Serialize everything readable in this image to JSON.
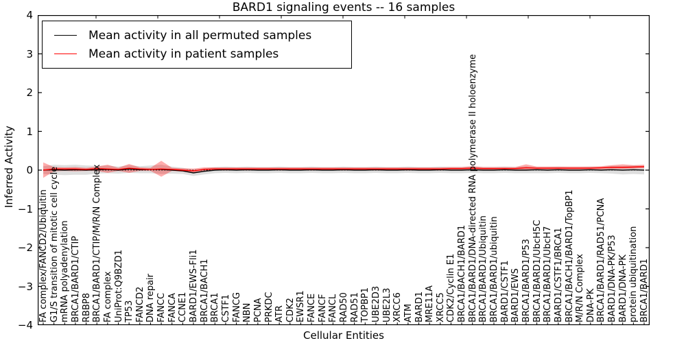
{
  "chart_data": {
    "type": "line",
    "title": "BARD1 signaling events -- 16 samples",
    "xlabel": "Cellular Entities",
    "ylabel": "Inferred Activity",
    "ylim": [
      -4,
      4
    ],
    "yticks": [
      "4",
      "3",
      "2",
      "1",
      "0",
      "−1",
      "−2",
      "−3",
      "−4"
    ],
    "legend_position": "upper left",
    "grid": false,
    "zero_line": {
      "style": "dotted",
      "color": "#000000"
    },
    "categories": [
      "FA complex/FANCD2/Ubiquitin",
      "G1/S transition of mitotic cell cycle",
      "mRNA polyadenylation",
      "BRCA1/BARD1/CTIP",
      "RBBP8",
      "BRCA1/BARD1/CTIP/M/R/N Complex",
      "FA complex",
      "UniProt:Q9BZD1",
      "TP53",
      "FANCD2",
      "DNA repair",
      "FANCC",
      "FANCA",
      "CCNE1",
      "BARD1/EWS-Fli1",
      "BRCA1/BACH1",
      "BRCA1",
      "CSTF1",
      "FANCG",
      "NBN",
      "PCNA",
      "PRKDC",
      "ATR",
      "CDK2",
      "EWSR1",
      "FANCE",
      "FANCF",
      "FANCL",
      "RAD50",
      "RAD51",
      "TOPBP1",
      "UBE2D3",
      "UBE2L3",
      "XRCC6",
      "ATM",
      "BARD1",
      "MRE11A",
      "XRCC5",
      "CDK2/Cyclin E1",
      "BRCA1/BACH1/BARD1",
      "BRCA1/BARD1/DNA-directed RNA polymerase II holoenzyme",
      "BRCA1/BARD1/Ubiquitin",
      "BRCA1/BARD1/ubiquitin",
      "BARD1/CSTF1",
      "BARD1/EWS",
      "BRCA1/BARD1/P53",
      "BRCA1/BARD1/UbcH5C",
      "BRCA1/BARD1/UbcH7",
      "BARD1/CSTF1/BRCA1",
      "BRCA1/BACH1/BARD1/TopBP1",
      "M/R/N Complex",
      "DNA-PK",
      "BRCA1/BARD1/RAD51/PCNA",
      "BARD1/DNA-PK/P53",
      "BARD1/DNA-PK",
      "protein ubiquitination",
      "BRCA1/BARD1"
    ],
    "series": [
      {
        "name": "Mean activity in all permuted samples",
        "color": "#000000",
        "band_color": "rgba(0,0,0,0.13)",
        "values": [
          0,
          0.01,
          0,
          0.01,
          0,
          0.01,
          0.02,
          0,
          0.03,
          0.01,
          0.02,
          0.02,
          0,
          -0.02,
          -0.07,
          -0.03,
          0,
          0.01,
          0,
          0.01,
          0,
          0,
          0.01,
          0,
          0,
          0.01,
          0,
          0,
          0.01,
          0,
          0,
          0.01,
          0,
          0,
          0.01,
          0,
          0,
          0.01,
          0,
          0,
          0.01,
          0,
          0,
          0.01,
          0,
          0,
          0.01,
          0,
          0.01,
          0,
          0,
          0.01,
          0,
          0.01,
          0,
          0.01,
          0
        ],
        "upper": [
          0.1,
          0.14,
          0.13,
          0.14,
          0.12,
          0.11,
          0.12,
          0.09,
          0.13,
          0.1,
          0.12,
          0.14,
          0.09,
          0.06,
          0.01,
          0.05,
          0.08,
          0.09,
          0.08,
          0.09,
          0.08,
          0.08,
          0.09,
          0.08,
          0.08,
          0.09,
          0.08,
          0.08,
          0.09,
          0.08,
          0.08,
          0.09,
          0.08,
          0.08,
          0.09,
          0.08,
          0.08,
          0.09,
          0.08,
          0.08,
          0.09,
          0.08,
          0.08,
          0.09,
          0.08,
          0.1,
          0.08,
          0.08,
          0.09,
          0.08,
          0.08,
          0.09,
          0.08,
          0.11,
          0.11,
          0.12,
          0.11
        ],
        "lower": [
          -0.1,
          -0.12,
          -0.13,
          -0.12,
          -0.12,
          -0.09,
          -0.08,
          -0.09,
          -0.07,
          -0.08,
          -0.08,
          -0.1,
          -0.09,
          -0.1,
          -0.15,
          -0.11,
          -0.08,
          -0.07,
          -0.08,
          -0.07,
          -0.08,
          -0.08,
          -0.07,
          -0.08,
          -0.08,
          -0.07,
          -0.08,
          -0.08,
          -0.07,
          -0.08,
          -0.08,
          -0.07,
          -0.08,
          -0.08,
          -0.07,
          -0.08,
          -0.08,
          -0.07,
          -0.08,
          -0.08,
          -0.07,
          -0.08,
          -0.08,
          -0.07,
          -0.08,
          -0.08,
          -0.08,
          -0.08,
          -0.07,
          -0.08,
          -0.08,
          -0.07,
          -0.08,
          -0.09,
          -0.11,
          -0.1,
          -0.11
        ]
      },
      {
        "name": "Mean activity in patient samples",
        "color": "#ff0000",
        "band_color": "rgba(255,0,0,0.32)",
        "values": [
          0,
          0.03,
          0.03,
          0.03,
          0.02,
          0.04,
          0.03,
          0.02,
          0.05,
          0.03,
          0.02,
          0.03,
          0.02,
          0,
          -0.02,
          0.02,
          0.03,
          0.03,
          0.03,
          0.03,
          0.03,
          0.03,
          0.03,
          0.03,
          0.03,
          0.03,
          0.03,
          0.03,
          0.03,
          0.03,
          0.03,
          0.03,
          0.03,
          0.03,
          0.03,
          0.03,
          0.03,
          0.03,
          0.04,
          0.04,
          0.05,
          0.04,
          0.04,
          0.04,
          0.04,
          0.06,
          0.05,
          0.05,
          0.05,
          0.05,
          0.05,
          0.05,
          0.06,
          0.07,
          0.07,
          0.08,
          0.09
        ],
        "upper": [
          0.2,
          0.08,
          0.07,
          0.08,
          0.06,
          0.09,
          0.14,
          0.06,
          0.16,
          0.07,
          0.06,
          0.24,
          0.06,
          0.05,
          0.04,
          0.07,
          0.07,
          0.07,
          0.07,
          0.07,
          0.07,
          0.07,
          0.07,
          0.07,
          0.07,
          0.07,
          0.07,
          0.07,
          0.07,
          0.07,
          0.07,
          0.07,
          0.07,
          0.07,
          0.07,
          0.07,
          0.07,
          0.07,
          0.08,
          0.08,
          0.1,
          0.08,
          0.08,
          0.08,
          0.08,
          0.15,
          0.09,
          0.09,
          0.09,
          0.09,
          0.09,
          0.09,
          0.1,
          0.13,
          0.15,
          0.13,
          0.14
        ],
        "lower": [
          -0.2,
          -0.03,
          -0.02,
          -0.03,
          -0.02,
          -0.02,
          -0.07,
          -0.02,
          -0.07,
          -0.02,
          -0.02,
          -0.17,
          -0.02,
          -0.04,
          -0.08,
          -0.02,
          -0.01,
          -0.01,
          -0.01,
          -0.01,
          -0.01,
          -0.01,
          -0.01,
          -0.01,
          -0.01,
          -0.01,
          -0.01,
          -0.01,
          -0.01,
          -0.01,
          -0.01,
          -0.01,
          -0.01,
          -0.01,
          -0.01,
          -0.01,
          -0.01,
          -0.01,
          0,
          0,
          0.01,
          0,
          0,
          0,
          0.01,
          0.01,
          0.01,
          0.01,
          0.01,
          0.01,
          0.01,
          0.02,
          0.02,
          0.03,
          0.03,
          0.04,
          0.05
        ]
      }
    ]
  }
}
